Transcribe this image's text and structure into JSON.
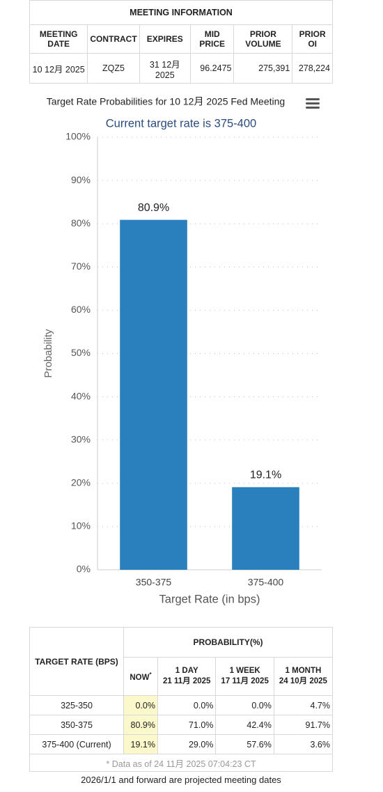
{
  "meeting": {
    "title": "MEETING INFORMATION",
    "headers": [
      "MEETING DATE",
      "CONTRACT",
      "EXPIRES",
      "MID PRICE",
      "PRIOR VOLUME",
      "PRIOR OI"
    ],
    "row": [
      "10 12月 2025",
      "ZQZ5",
      "31 12月 2025",
      "96.2475",
      "275,391",
      "278,224"
    ]
  },
  "chart_data": {
    "type": "bar",
    "title": "Target Rate Probabilities for 10 12月 2025 Fed Meeting",
    "subtitle": "Current target rate is 375-400",
    "x_label": "Target Rate (in bps)",
    "y_label": "Probability",
    "categories": [
      "350-375",
      "375-400"
    ],
    "values": [
      80.9,
      19.1
    ],
    "value_labels": [
      "80.9%",
      "19.1%"
    ],
    "color": "#2a7fbd",
    "ylim": [
      0,
      100
    ],
    "yticks": [
      {
        "value": 0,
        "label": "0%"
      },
      {
        "value": 10,
        "label": "10%"
      },
      {
        "value": 20,
        "label": "20%"
      },
      {
        "value": 30,
        "label": "30%"
      },
      {
        "value": 40,
        "label": "40%"
      },
      {
        "value": 50,
        "label": "50%"
      },
      {
        "value": 60,
        "label": "60%"
      },
      {
        "value": 70,
        "label": "70%"
      },
      {
        "value": 80,
        "label": "80%"
      },
      {
        "value": 90,
        "label": "90%"
      },
      {
        "value": 100,
        "label": "100%"
      }
    ],
    "grid": true
  },
  "probability": {
    "header_left": "TARGET RATE (BPS)",
    "header_group": "PROBABILITY(%)",
    "now_marker": "*",
    "columns": [
      {
        "label": "NOW"
      },
      {
        "label": "1 DAY",
        "date": "21 11月 2025"
      },
      {
        "label": "1 WEEK",
        "date": "17 11月 2025"
      },
      {
        "label": "1 MONTH",
        "date": "24 10月 2025"
      }
    ],
    "rows": [
      [
        "325-350",
        "0.0%",
        "0.0%",
        "0.0%",
        "4.7%"
      ],
      [
        "350-375",
        "80.9%",
        "71.0%",
        "42.4%",
        "91.7%"
      ],
      [
        "375-400 (Current)",
        "19.1%",
        "29.0%",
        "57.6%",
        "3.6%"
      ]
    ],
    "note": "* Data as of 24 11月 2025 07:04:23 CT"
  },
  "footer": "2026/1/1 and forward are projected meeting dates"
}
